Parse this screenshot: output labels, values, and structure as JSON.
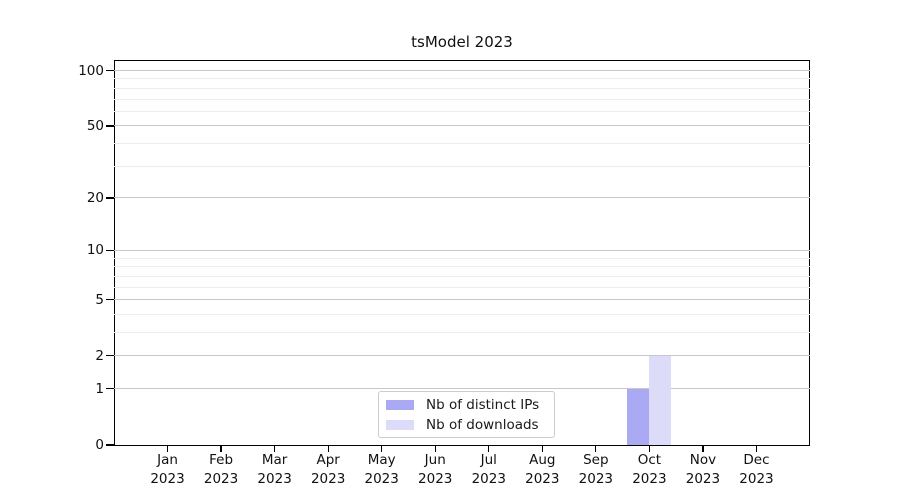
{
  "chart_data": {
    "type": "bar",
    "title": "tsModel 2023",
    "categories": [
      "Jan",
      "Feb",
      "Mar",
      "Apr",
      "May",
      "Jun",
      "Jul",
      "Aug",
      "Sep",
      "Oct",
      "Nov",
      "Dec"
    ],
    "category_year": "2023",
    "series": [
      {
        "name": "Nb of distinct IPs",
        "color": "#a9a9f4",
        "values": [
          0,
          0,
          0,
          0,
          0,
          0,
          0,
          0,
          0,
          1,
          0,
          0
        ]
      },
      {
        "name": "Nb of downloads",
        "color": "#dcdcf8",
        "values": [
          0,
          0,
          0,
          0,
          0,
          0,
          0,
          0,
          0,
          2,
          0,
          0
        ]
      }
    ],
    "y_axis": {
      "scale": "log10(value+1)",
      "major_ticks": [
        0,
        1,
        2,
        5,
        10,
        20,
        50,
        100
      ],
      "minor_gridlines": [
        3,
        4,
        6,
        7,
        8,
        9,
        30,
        40,
        60,
        70,
        80,
        90
      ],
      "range": [
        0,
        100
      ]
    },
    "x_axis": {
      "label_format": "month over year"
    },
    "legend": {
      "position": "bottom-center-inside",
      "entries": [
        "Nb of distinct IPs",
        "Nb of downloads"
      ]
    },
    "grid": true
  },
  "colors": {
    "background": "#ffffff",
    "axis": "#000000",
    "major_grid": "#c8c8c8",
    "minor_grid": "#ececec",
    "text": "#111111",
    "legend_border": "#cccccc",
    "bar_distinct_ips": "#a9a9f4",
    "bar_downloads": "#dcdcf8"
  }
}
